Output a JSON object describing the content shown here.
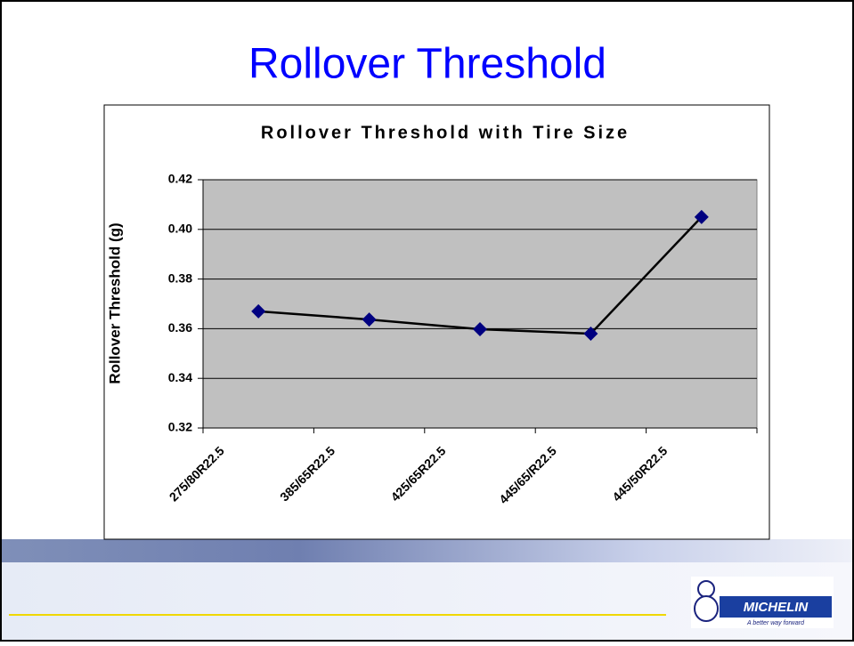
{
  "title": "Rollover Threshold",
  "chart_data": {
    "type": "line",
    "title": "Rollover Threshold with Tire Size",
    "y_label": "Rollover Threshold (g)",
    "categories": [
      "275/80R22.5",
      "385/65R22.5",
      "425/65R22.5",
      "445/65/R22.5",
      "445/50R22.5"
    ],
    "values": [
      0.367,
      0.3637,
      0.3598,
      0.358,
      0.405
    ],
    "color": "#000000",
    "marker_color": "#000080",
    "ylim": [
      0.32,
      0.42
    ],
    "yticks": [
      0.32,
      0.34,
      0.36,
      0.38,
      {
        "value": 0.4,
        "label": "0.40"
      },
      0.42
    ],
    "grid": true
  },
  "logo": {
    "brand": "MICHELIN",
    "tagline": "A better way forward"
  }
}
